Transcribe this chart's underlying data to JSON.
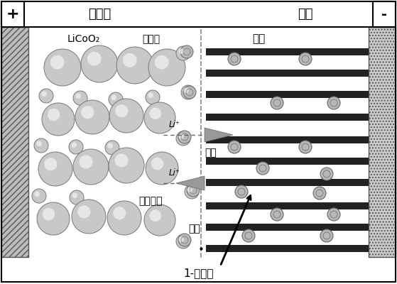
{
  "bg_color": "#ffffff",
  "label_plus": "+",
  "label_minus": "-",
  "label_cathode": "还原极",
  "label_anode": "阳极",
  "label_licoo2": "LiCoO₂",
  "label_electrolyte": "电解质",
  "label_graphite": "石墨",
  "label_transport": "输运",
  "label_reverse": "反向输运",
  "label_separator": "隔膜",
  "label_li_ion_caption": "1-锂离子",
  "label_li_plus_1": "Li⁺",
  "label_li_plus_2": "Li⁺",
  "sphere_color": "#c8c8c8",
  "sphere_edge": "#777777",
  "sphere_highlight": "#f0f0f0",
  "graphite_color": "#222222",
  "li_ion_color": "#b8b8b8",
  "li_ion_edge": "#666666",
  "left_cc_color": "#bbbbbb",
  "right_cc_color": "#cccccc",
  "arrow_color": "#333333",
  "dashed_color": "#666666",
  "separator_line_color": "#888888"
}
